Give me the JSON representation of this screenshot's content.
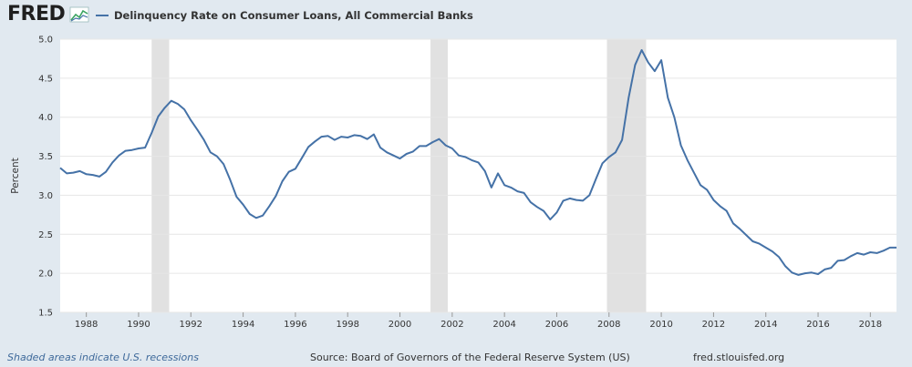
{
  "header": {
    "logo_text": "FRED",
    "logo_icon": "chart-line-icon",
    "series_label": "Delinquency Rate on Consumer Loans, All Commercial Banks",
    "series_color": "#4572a7"
  },
  "footer": {
    "note": "Shaded areas indicate U.S. recessions",
    "source": "Source: Board of Governors of the Federal Reserve System (US)",
    "url": "fred.stlouisfed.org"
  },
  "chart_data": {
    "type": "line",
    "ylabel": "Percent",
    "xlim": [
      1987.0,
      2019.0
    ],
    "ylim": [
      1.5,
      5.0
    ],
    "yticks": [
      "1.5",
      "2.0",
      "2.5",
      "3.0",
      "3.5",
      "4.0",
      "4.5",
      "5.0"
    ],
    "xticks": [
      "1988",
      "1990",
      "1992",
      "1994",
      "1996",
      "1998",
      "2000",
      "2002",
      "2004",
      "2006",
      "2008",
      "2010",
      "2012",
      "2014",
      "2016",
      "2018"
    ],
    "grid": true,
    "recession_color": "#e1e1e1",
    "recessions": [
      [
        1990.5,
        1991.17
      ],
      [
        2001.17,
        2001.83
      ],
      [
        2007.92,
        2009.42
      ]
    ],
    "series": [
      {
        "name": "Delinquency Rate on Consumer Loans, All Commercial Banks",
        "color": "#4572a7",
        "x": [
          1987.0,
          1987.25,
          1987.5,
          1987.75,
          1988.0,
          1988.25,
          1988.5,
          1988.75,
          1989.0,
          1989.25,
          1989.5,
          1989.75,
          1990.0,
          1990.25,
          1990.5,
          1990.75,
          1991.0,
          1991.25,
          1991.5,
          1991.75,
          1992.0,
          1992.25,
          1992.5,
          1992.75,
          1993.0,
          1993.25,
          1993.5,
          1993.75,
          1994.0,
          1994.25,
          1994.5,
          1994.75,
          1995.0,
          1995.25,
          1995.5,
          1995.75,
          1996.0,
          1996.25,
          1996.5,
          1996.75,
          1997.0,
          1997.25,
          1997.5,
          1997.75,
          1998.0,
          1998.25,
          1998.5,
          1998.75,
          1999.0,
          1999.25,
          1999.5,
          1999.75,
          2000.0,
          2000.25,
          2000.5,
          2000.75,
          2001.0,
          2001.25,
          2001.5,
          2001.75,
          2002.0,
          2002.25,
          2002.5,
          2002.75,
          2003.0,
          2003.25,
          2003.5,
          2003.75,
          2004.0,
          2004.25,
          2004.5,
          2004.75,
          2005.0,
          2005.25,
          2005.5,
          2005.75,
          2006.0,
          2006.25,
          2006.5,
          2006.75,
          2007.0,
          2007.25,
          2007.5,
          2007.75,
          2008.0,
          2008.25,
          2008.5,
          2008.75,
          2009.0,
          2009.25,
          2009.5,
          2009.75,
          2010.0,
          2010.25,
          2010.5,
          2010.75,
          2011.0,
          2011.25,
          2011.5,
          2011.75,
          2012.0,
          2012.25,
          2012.5,
          2012.75,
          2013.0,
          2013.25,
          2013.5,
          2013.75,
          2014.0,
          2014.25,
          2014.5,
          2014.75,
          2015.0,
          2015.25,
          2015.5,
          2015.75,
          2016.0,
          2016.25,
          2016.5,
          2016.75,
          2017.0,
          2017.25,
          2017.5,
          2017.75,
          2018.0,
          2018.25,
          2018.5,
          2018.75,
          2019.0
        ],
        "y": [
          3.35,
          3.28,
          3.29,
          3.31,
          3.27,
          3.26,
          3.24,
          3.3,
          3.42,
          3.51,
          3.57,
          3.58,
          3.6,
          3.61,
          3.8,
          4.01,
          4.12,
          4.21,
          4.17,
          4.1,
          3.96,
          3.84,
          3.71,
          3.55,
          3.5,
          3.4,
          3.2,
          2.98,
          2.88,
          2.76,
          2.71,
          2.74,
          2.86,
          2.99,
          3.18,
          3.3,
          3.34,
          3.48,
          3.62,
          3.69,
          3.75,
          3.76,
          3.71,
          3.75,
          3.74,
          3.77,
          3.76,
          3.72,
          3.78,
          3.61,
          3.55,
          3.51,
          3.47,
          3.53,
          3.56,
          3.63,
          3.63,
          3.68,
          3.72,
          3.64,
          3.6,
          3.51,
          3.49,
          3.45,
          3.42,
          3.31,
          3.1,
          3.28,
          3.13,
          3.1,
          3.05,
          3.03,
          2.91,
          2.85,
          2.8,
          2.69,
          2.78,
          2.93,
          2.96,
          2.94,
          2.93,
          3.0,
          3.21,
          3.41,
          3.49,
          3.55,
          3.71,
          4.25,
          4.67,
          4.86,
          4.7,
          4.59,
          4.73,
          4.25,
          4.0,
          3.64,
          3.45,
          3.29,
          3.13,
          3.07,
          2.94,
          2.86,
          2.8,
          2.64,
          2.57,
          2.49,
          2.41,
          2.38,
          2.33,
          2.28,
          2.21,
          2.09,
          2.01,
          1.98,
          2.0,
          2.01,
          1.99,
          2.05,
          2.07,
          2.16,
          2.17,
          2.22,
          2.26,
          2.24,
          2.27,
          2.26,
          2.29,
          2.33,
          2.33
        ]
      }
    ]
  }
}
